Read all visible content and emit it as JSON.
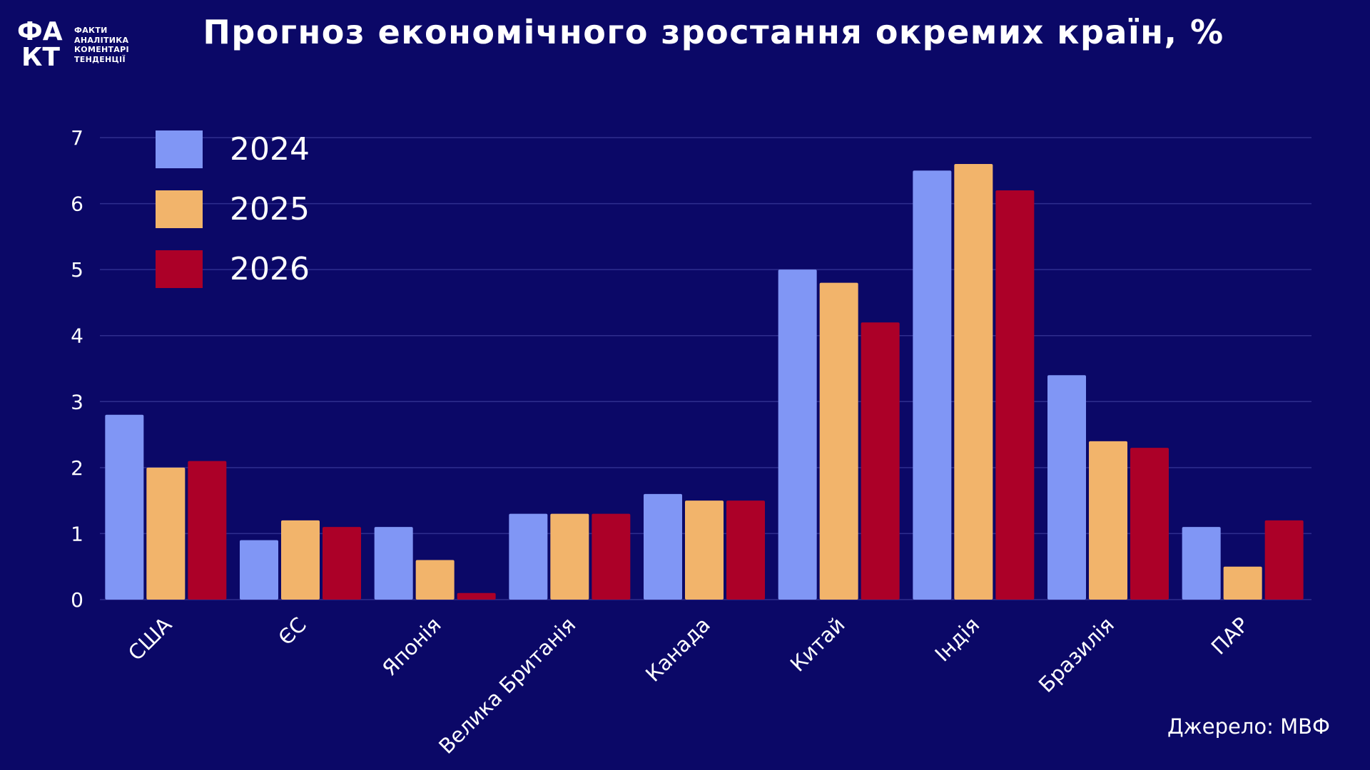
{
  "logo": {
    "letters_top": "ФА",
    "letters_bottom": "КТ",
    "taglines": [
      "ФАКТИ",
      "АНАЛІТИКА",
      "КОМЕНТАРІ",
      "ТЕНДЕНЦІЇ"
    ]
  },
  "title": "Прогноз економічного зростання окремих країн, %",
  "source": "Джерело: МВФ",
  "colors": {
    "background": "#0b0867",
    "grid": "#2f2e8e",
    "series": [
      "#8096f5",
      "#f2b46b",
      "#ac0028"
    ]
  },
  "chart_data": {
    "type": "bar",
    "title": "Прогноз економічного зростання окремих країн, %",
    "categories": [
      "США",
      "ЄС",
      "Японія",
      "Велика Британія",
      "Канада",
      "Китай",
      "Індія",
      "Бразилія",
      "ПАР"
    ],
    "series": [
      {
        "name": "2024",
        "values": [
          2.8,
          0.9,
          1.1,
          1.3,
          1.6,
          5.0,
          6.5,
          3.4,
          1.1
        ]
      },
      {
        "name": "2025",
        "values": [
          2.0,
          1.2,
          0.6,
          1.3,
          1.5,
          4.8,
          6.6,
          2.4,
          0.5
        ]
      },
      {
        "name": "2026",
        "values": [
          2.1,
          1.1,
          0.1,
          1.3,
          1.5,
          4.2,
          6.2,
          2.3,
          1.2
        ]
      }
    ],
    "yticks": [
      "0",
      "1",
      "2",
      "3",
      "4",
      "5",
      "6",
      "7"
    ],
    "ylim": [
      0,
      7
    ],
    "grid": true,
    "legend": "top-left"
  }
}
